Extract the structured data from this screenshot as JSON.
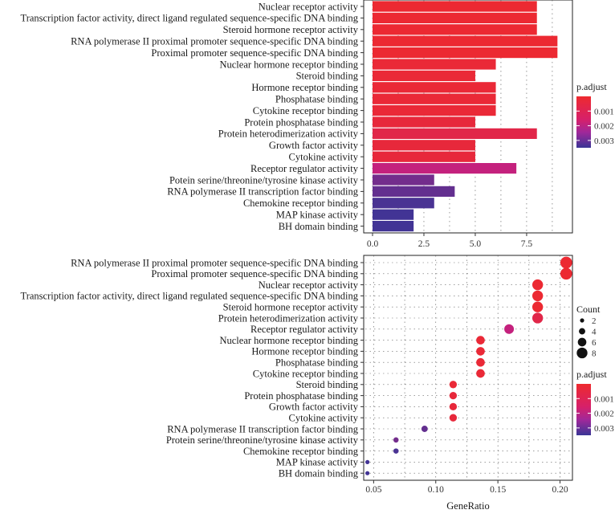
{
  "chart_data": [
    {
      "type": "bar",
      "orientation": "horizontal",
      "title": "",
      "xlabel": "",
      "ylabel": "",
      "xlim": [
        0,
        9.3
      ],
      "xticks": [
        0.0,
        2.5,
        5.0,
        7.5
      ],
      "xtick_labels": [
        "0.0",
        "2.5",
        "5.0",
        "7.5"
      ],
      "color_by": "p.adjust",
      "categories": [
        "Nuclear receptor activity",
        "Transcription factor activity, direct ligand regulated sequence-specific DNA binding",
        "Steroid hormone receptor activity",
        "RNA polymerase II proximal promoter sequence-specific DNA binding",
        "Proximal promoter sequence-specific DNA binding",
        "Nuclear hormone receptor binding",
        "Steroid binding",
        "Hormone receptor binding",
        "Phosphatase binding",
        "Cytokine receptor binding",
        "Protein phosphatase binding",
        "Protein heterodimerization activity",
        "Growth factor activity",
        "Cytokine activity",
        "Receptor regulator activity",
        "Potein serine/threonine/tyrosine kinase activity",
        "RNA polymerase II transcription factor binding",
        "Chemokine receptor binding",
        "MAP kinase activity",
        "BH domain binding"
      ],
      "values": [
        8,
        8,
        8,
        9,
        9,
        6,
        5,
        6,
        6,
        6,
        5,
        8,
        5,
        5,
        7,
        3,
        4,
        3,
        2,
        2
      ],
      "p_adjust": [
        0.0001,
        0.0001,
        0.0001,
        0.0001,
        0.0001,
        0.0002,
        0.0002,
        0.0002,
        0.0002,
        0.0002,
        0.0003,
        0.0006,
        0.0003,
        0.0003,
        0.0018,
        0.0028,
        0.003,
        0.0033,
        0.0034,
        0.0034
      ],
      "legend": {
        "title": "p.adjust",
        "ticks": [
          0.001,
          0.002,
          0.003
        ],
        "tick_labels": [
          "0.001",
          "0.002",
          "0.003"
        ],
        "range": [
          0,
          0.0035
        ],
        "low_color": "#ee2a2e",
        "high_color": "#3a3596",
        "placement": "right"
      },
      "grid": true
    },
    {
      "type": "scatter",
      "style": "dotplot",
      "title": "",
      "xlabel": "GeneRatio",
      "ylabel": "",
      "xlim": [
        0.042,
        0.21
      ],
      "xticks": [
        0.05,
        0.1,
        0.15,
        0.2
      ],
      "xtick_labels": [
        "0.05",
        "0.10",
        "0.15",
        "0.20"
      ],
      "categories": [
        "RNA polymerase II proximal promoter sequence-specific DNA binding",
        "Proximal promoter sequence-specific DNA binding",
        "Nuclear receptor activity",
        "Transcription factor activity, direct ligand regulated sequence-specific DNA binding",
        "Steroid hormone receptor activity",
        "Protein heterodimerization activity",
        "Receptor regulator activity",
        "Nuclear hormone receptor binding",
        "Hormone receptor binding",
        "Phosphatase binding",
        "Cytokine receptor binding",
        "Steroid binding",
        "Protein phosphatase binding",
        "Growth factor activity",
        "Cytokine activity",
        "RNA polymerase II transcription factor binding",
        "Protein serine/threonine/tyrosine kinase activity",
        "Chemokine receptor binding",
        "MAP kinase activity",
        "BH domain binding"
      ],
      "gene_ratio": [
        0.205,
        0.205,
        0.182,
        0.182,
        0.182,
        0.182,
        0.159,
        0.136,
        0.136,
        0.136,
        0.136,
        0.114,
        0.114,
        0.114,
        0.114,
        0.091,
        0.068,
        0.068,
        0.045,
        0.045
      ],
      "count": [
        9,
        9,
        8,
        8,
        8,
        8,
        7,
        6,
        6,
        6,
        6,
        5,
        5,
        5,
        5,
        4,
        3,
        3,
        2,
        2
      ],
      "p_adjust": [
        0.0001,
        0.0001,
        0.0001,
        0.0001,
        0.0001,
        0.0006,
        0.0018,
        0.0002,
        0.0002,
        0.0002,
        0.0002,
        0.0002,
        0.0003,
        0.0003,
        0.0003,
        0.003,
        0.0028,
        0.0033,
        0.0034,
        0.0034
      ],
      "size_legend": {
        "title": "Count",
        "values": [
          2,
          4,
          6,
          8
        ],
        "labels": [
          "2",
          "4",
          "6",
          "8"
        ],
        "placement": "right"
      },
      "legend": {
        "title": "p.adjust",
        "ticks": [
          0.001,
          0.002,
          0.003
        ],
        "tick_labels": [
          "0.001",
          "0.002",
          "0.003"
        ],
        "range": [
          0,
          0.0035
        ],
        "low_color": "#ee2a2e",
        "high_color": "#3a3596",
        "placement": "right"
      },
      "grid": true
    }
  ]
}
